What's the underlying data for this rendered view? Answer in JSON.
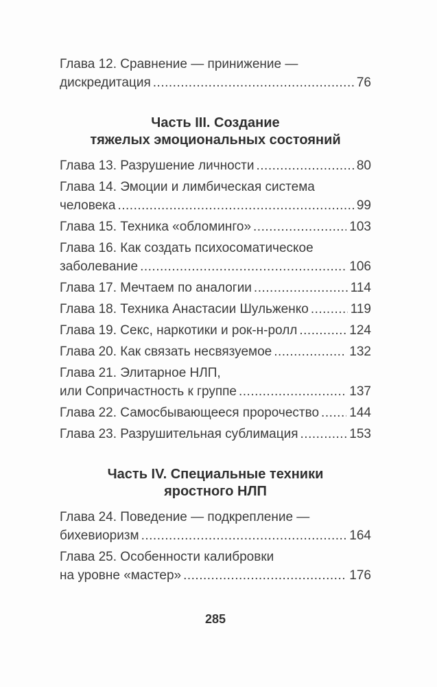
{
  "colors": {
    "background": "#fdfdfd",
    "body_text": "#3b3b3b",
    "heading_text": "#2f2f2f"
  },
  "toc": {
    "sections": [
      {
        "entries": [
          {
            "pre_lines": [
              "Глава 12. Сравнение — принижение —"
            ],
            "last_line": "дискредитация",
            "page": "76"
          }
        ]
      },
      {
        "heading_lines": [
          "Часть III. Создание",
          "тяжелых эмоциональных состояний"
        ],
        "entries": [
          {
            "last_line": "Глава 13. Разрушение личности",
            "page": "80"
          },
          {
            "pre_lines": [
              "Глава 14. Эмоции и лимбическая система"
            ],
            "last_line": "человека",
            "page": "99"
          },
          {
            "last_line": "Глава 15. Техника «обломинго»",
            "page": "103"
          },
          {
            "pre_lines": [
              "Глава 16. Как создать психосоматическое"
            ],
            "last_line": "заболевание",
            "page": "106"
          },
          {
            "last_line": "Глава 17. Мечтаем по аналогии",
            "page": "114"
          },
          {
            "last_line": "Глава 18. Техника Анастасии Шульженко",
            "page": "119"
          },
          {
            "last_line": "Глава 19. Секс, наркотики и рок-н-ролл",
            "page": "124"
          },
          {
            "last_line": "Глава 20. Как связать несвязуемое",
            "page": "132"
          },
          {
            "pre_lines": [
              "Глава 21. Элитарное НЛП,"
            ],
            "last_line": "или Сопричастность к группе",
            "page": "137"
          },
          {
            "last_line": "Глава 22. Самосбывающееся пророчество",
            "page": "144"
          },
          {
            "last_line": "Глава 23. Разрушительная сублимация",
            "page": "153"
          }
        ]
      },
      {
        "heading_lines": [
          "Часть IV. Специальные техники",
          "яростного НЛП"
        ],
        "entries": [
          {
            "pre_lines": [
              "Глава 24. Поведение — подкрепление —"
            ],
            "last_line": "бихевиоризм",
            "page": "164"
          },
          {
            "pre_lines": [
              "Глава 25. Особенности калибровки"
            ],
            "last_line": "на уровне «мастер»",
            "page": "176"
          }
        ]
      }
    ]
  },
  "footer": {
    "page_number": "285"
  }
}
